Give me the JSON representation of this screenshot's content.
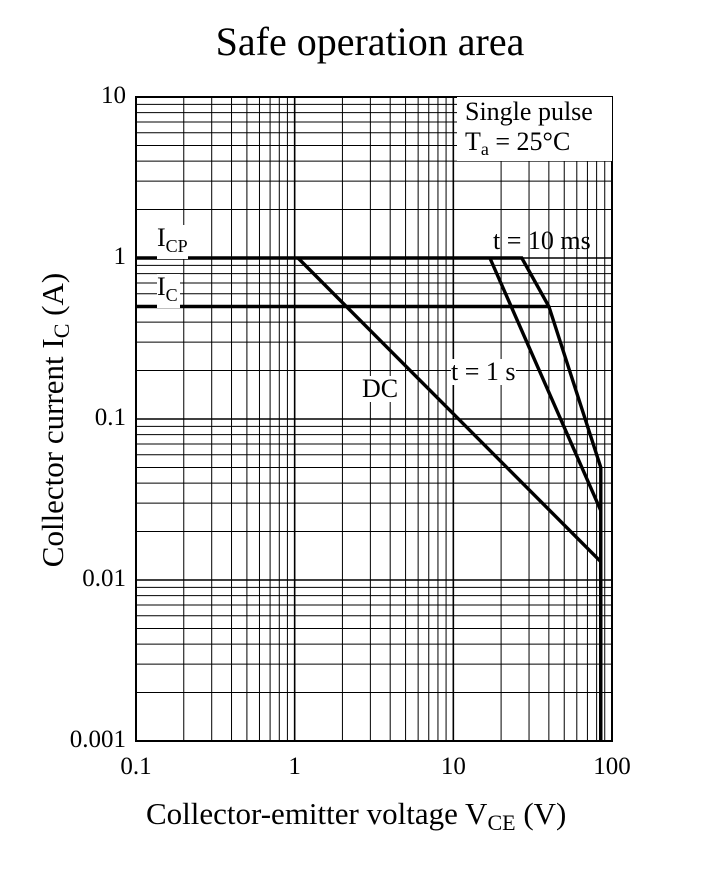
{
  "chart_data": {
    "type": "line",
    "title": "Safe operation area",
    "xlabel": {
      "main": "Collector-emitter voltage  V",
      "sub": "CE",
      "unit": "  (V)"
    },
    "ylabel": {
      "main": "Collector current  I",
      "sub": "C",
      "unit": "  (A)"
    },
    "xscale": "log",
    "yscale": "log",
    "xlim": [
      0.1,
      100
    ],
    "ylim": [
      0.001,
      10
    ],
    "grid": true,
    "xticks": [
      "0.1",
      "1",
      "10",
      "100"
    ],
    "yticks": [
      "0.001",
      "0.01",
      "0.1",
      "1",
      "10"
    ],
    "legend": {
      "line1": "Single pulse",
      "line2_main": "T",
      "line2_sub": "a",
      "line2_rest": " = 25°C",
      "placement": "top-right"
    },
    "annotations": {
      "icp": {
        "main": "I",
        "sub": "CP"
      },
      "ic": {
        "main": "I",
        "sub": "C"
      },
      "t10ms": "t = 10 ms",
      "t1s": "t = 1 s",
      "dc": "DC"
    },
    "series": [
      {
        "name": "t = 10 ms",
        "x": [
          0.1,
          27,
          40,
          85,
          85
        ],
        "y": [
          1,
          1,
          0.5,
          0.05,
          0.001
        ]
      },
      {
        "name": "t = 1 s",
        "x": [
          17,
          85,
          85
        ],
        "y": [
          1,
          0.027,
          0.001
        ]
      },
      {
        "name": "DC",
        "x": [
          1.05,
          85,
          85
        ],
        "y": [
          1,
          0.013,
          0.001
        ]
      },
      {
        "name": "I",
        "x": [
          0.1,
          40
        ],
        "y": [
          0.5,
          0.5
        ]
      }
    ]
  }
}
